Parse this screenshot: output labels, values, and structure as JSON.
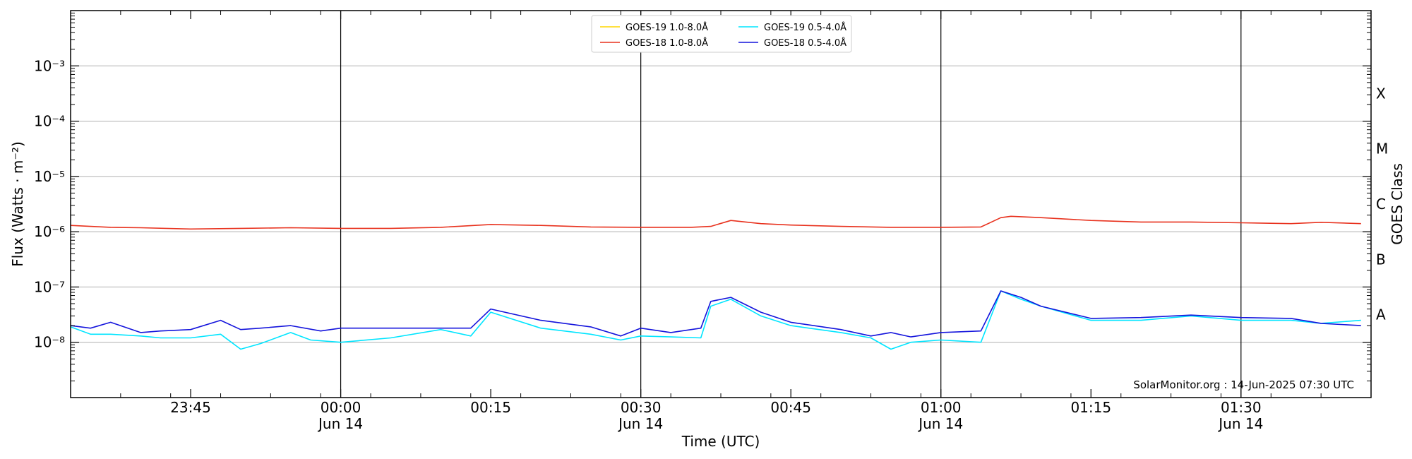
{
  "chart_data": {
    "type": "line",
    "xlabel": "Time (UTC)",
    "ylabel": "Flux (Watts · m⁻²)",
    "y2label": "GOES Class",
    "yscale": "log",
    "ylim": [
      1e-09,
      0.01
    ],
    "xlim": [
      "2025-06-13T23:33",
      "2025-06-14T01:43"
    ],
    "y_ticks": [
      {
        "value": 1e-08,
        "label": "10⁻⁸"
      },
      {
        "value": 1e-07,
        "label": "10⁻⁷"
      },
      {
        "value": 1e-06,
        "label": "10⁻⁶"
      },
      {
        "value": 1e-05,
        "label": "10⁻⁵"
      },
      {
        "value": 0.0001,
        "label": "10⁻⁴"
      },
      {
        "value": 0.001,
        "label": "10⁻³"
      }
    ],
    "x_ticks": [
      {
        "value": "2025-06-13T23:45",
        "label": "23:45",
        "sublabel": ""
      },
      {
        "value": "2025-06-14T00:00",
        "label": "00:00",
        "sublabel": "Jun 14"
      },
      {
        "value": "2025-06-14T00:15",
        "label": "00:15",
        "sublabel": ""
      },
      {
        "value": "2025-06-14T00:30",
        "label": "00:30",
        "sublabel": "Jun 14"
      },
      {
        "value": "2025-06-14T00:45",
        "label": "00:45",
        "sublabel": ""
      },
      {
        "value": "2025-06-14T01:00",
        "label": "01:00",
        "sublabel": "Jun 14"
      },
      {
        "value": "2025-06-14T01:15",
        "label": "01:15",
        "sublabel": ""
      },
      {
        "value": "2025-06-14T01:30",
        "label": "01:30",
        "sublabel": "Jun 14"
      }
    ],
    "vlines": [
      "2025-06-14T00:00",
      "2025-06-14T00:30",
      "2025-06-14T01:00",
      "2025-06-14T01:30"
    ],
    "classes": [
      {
        "label": "A",
        "value": 3.16e-08
      },
      {
        "label": "B",
        "value": 3.16e-07
      },
      {
        "label": "C",
        "value": 3.16e-06
      },
      {
        "label": "M",
        "value": 3.16e-05
      },
      {
        "label": "X",
        "value": 0.000316
      }
    ],
    "grid": "horizontal",
    "legend_position": "top-center",
    "credit": "SolarMonitor.org : 14-Jun-2025 07:30 UTC",
    "series": [
      {
        "name": "GOES-19 1.0-8.0Å",
        "color": "#ffd700",
        "draw": false,
        "x": [],
        "y": []
      },
      {
        "name": "GOES-18 1.0-8.0Å",
        "color": "#e8321e",
        "draw": true,
        "x": [
          "2025-06-13T23:33",
          "2025-06-13T23:35",
          "2025-06-13T23:37",
          "2025-06-13T23:40",
          "2025-06-13T23:45",
          "2025-06-13T23:50",
          "2025-06-13T23:55",
          "2025-06-14T00:00",
          "2025-06-14T00:05",
          "2025-06-14T00:10",
          "2025-06-14T00:15",
          "2025-06-14T00:20",
          "2025-06-14T00:25",
          "2025-06-14T00:30",
          "2025-06-14T00:35",
          "2025-06-14T00:37",
          "2025-06-14T00:39",
          "2025-06-14T00:42",
          "2025-06-14T00:45",
          "2025-06-14T00:50",
          "2025-06-14T00:55",
          "2025-06-14T01:00",
          "2025-06-14T01:04",
          "2025-06-14T01:06",
          "2025-06-14T01:07",
          "2025-06-14T01:10",
          "2025-06-14T01:15",
          "2025-06-14T01:20",
          "2025-06-14T01:25",
          "2025-06-14T01:30",
          "2025-06-14T01:35",
          "2025-06-14T01:38",
          "2025-06-14T01:42"
        ],
        "y": [
          1.3e-06,
          1.25e-06,
          1.2e-06,
          1.18e-06,
          1.12e-06,
          1.15e-06,
          1.18e-06,
          1.15e-06,
          1.15e-06,
          1.2e-06,
          1.35e-06,
          1.3e-06,
          1.22e-06,
          1.2e-06,
          1.2e-06,
          1.25e-06,
          1.6e-06,
          1.4e-06,
          1.32e-06,
          1.25e-06,
          1.2e-06,
          1.2e-06,
          1.22e-06,
          1.8e-06,
          1.9e-06,
          1.8e-06,
          1.6e-06,
          1.5e-06,
          1.5e-06,
          1.45e-06,
          1.4e-06,
          1.48e-06,
          1.4e-06
        ]
      },
      {
        "name": "GOES-19 0.5-4.0Å",
        "color": "#00e5ff",
        "draw": true,
        "x": [
          "2025-06-13T23:33",
          "2025-06-13T23:35",
          "2025-06-13T23:37",
          "2025-06-13T23:40",
          "2025-06-13T23:42",
          "2025-06-13T23:45",
          "2025-06-13T23:48",
          "2025-06-13T23:50",
          "2025-06-13T23:52",
          "2025-06-13T23:55",
          "2025-06-13T23:57",
          "2025-06-14T00:00",
          "2025-06-14T00:05",
          "2025-06-14T00:10",
          "2025-06-14T00:13",
          "2025-06-14T00:15",
          "2025-06-14T00:20",
          "2025-06-14T00:25",
          "2025-06-14T00:28",
          "2025-06-14T00:30",
          "2025-06-14T00:33",
          "2025-06-14T00:36",
          "2025-06-14T00:37",
          "2025-06-14T00:39",
          "2025-06-14T00:42",
          "2025-06-14T00:45",
          "2025-06-14T00:50",
          "2025-06-14T00:53",
          "2025-06-14T00:55",
          "2025-06-14T00:57",
          "2025-06-14T01:00",
          "2025-06-14T01:04",
          "2025-06-14T01:06",
          "2025-06-14T01:08",
          "2025-06-14T01:10",
          "2025-06-14T01:15",
          "2025-06-14T01:20",
          "2025-06-14T01:25",
          "2025-06-14T01:30",
          "2025-06-14T01:35",
          "2025-06-14T01:38",
          "2025-06-14T01:42"
        ],
        "y": [
          1.9e-08,
          1.4e-08,
          1.4e-08,
          1.3e-08,
          1.2e-08,
          1.2e-08,
          1.4e-08,
          7.5e-09,
          9.5e-09,
          1.5e-08,
          1.1e-08,
          1e-08,
          1.2e-08,
          1.7e-08,
          1.3e-08,
          3.5e-08,
          1.8e-08,
          1.4e-08,
          1.1e-08,
          1.3e-08,
          1.25e-08,
          1.2e-08,
          4.5e-08,
          6e-08,
          3e-08,
          2e-08,
          1.5e-08,
          1.2e-08,
          7.5e-09,
          1e-08,
          1.1e-08,
          1e-08,
          8.5e-08,
          6e-08,
          4.5e-08,
          2.5e-08,
          2.5e-08,
          3e-08,
          2.5e-08,
          2.5e-08,
          2.2e-08,
          2.5e-08
        ]
      },
      {
        "name": "GOES-18 0.5-4.0Å",
        "color": "#1414dc",
        "draw": true,
        "x": [
          "2025-06-13T23:33",
          "2025-06-13T23:35",
          "2025-06-13T23:37",
          "2025-06-13T23:40",
          "2025-06-13T23:42",
          "2025-06-13T23:45",
          "2025-06-13T23:48",
          "2025-06-13T23:50",
          "2025-06-13T23:52",
          "2025-06-13T23:55",
          "2025-06-13T23:58",
          "2025-06-14T00:00",
          "2025-06-14T00:05",
          "2025-06-14T00:10",
          "2025-06-14T00:13",
          "2025-06-14T00:15",
          "2025-06-14T00:20",
          "2025-06-14T00:25",
          "2025-06-14T00:28",
          "2025-06-14T00:30",
          "2025-06-14T00:33",
          "2025-06-14T00:36",
          "2025-06-14T00:37",
          "2025-06-14T00:39",
          "2025-06-14T00:42",
          "2025-06-14T00:45",
          "2025-06-14T00:50",
          "2025-06-14T00:53",
          "2025-06-14T00:55",
          "2025-06-14T00:57",
          "2025-06-14T01:00",
          "2025-06-14T01:04",
          "2025-06-14T01:06",
          "2025-06-14T01:08",
          "2025-06-14T01:10",
          "2025-06-14T01:15",
          "2025-06-14T01:20",
          "2025-06-14T01:25",
          "2025-06-14T01:30",
          "2025-06-14T01:35",
          "2025-06-14T01:38",
          "2025-06-14T01:42"
        ],
        "y": [
          2e-08,
          1.8e-08,
          2.3e-08,
          1.5e-08,
          1.6e-08,
          1.7e-08,
          2.5e-08,
          1.7e-08,
          1.8e-08,
          2e-08,
          1.6e-08,
          1.8e-08,
          1.8e-08,
          1.8e-08,
          1.8e-08,
          4e-08,
          2.5e-08,
          1.9e-08,
          1.3e-08,
          1.8e-08,
          1.5e-08,
          1.8e-08,
          5.5e-08,
          6.5e-08,
          3.5e-08,
          2.3e-08,
          1.7e-08,
          1.3e-08,
          1.5e-08,
          1.25e-08,
          1.5e-08,
          1.6e-08,
          8.5e-08,
          6.5e-08,
          4.5e-08,
          2.7e-08,
          2.8e-08,
          3.1e-08,
          2.8e-08,
          2.7e-08,
          2.2e-08,
          2e-08
        ]
      }
    ]
  }
}
